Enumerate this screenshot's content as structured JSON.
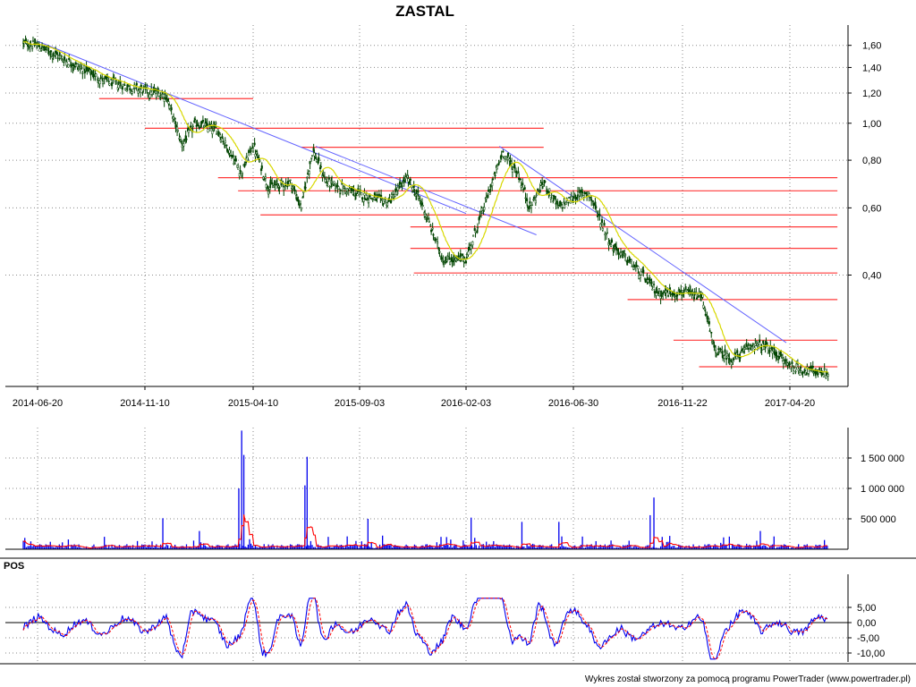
{
  "chart_data": [
    {
      "type": "candlestick",
      "title": "ZASTAL",
      "x_tick_labels": [
        "2014-06-20",
        "2014-11-10",
        "2015-04-10",
        "2015-09-03",
        "2016-02-03",
        "2016-06-30",
        "2016-11-22",
        "2017-04-20"
      ],
      "y_scale": "log",
      "y_tick_labels": [
        "1,60",
        "1,40",
        "1,20",
        "1,00",
        "0,80",
        "0,60",
        "0,40"
      ],
      "y_ticks": [
        1.6,
        1.4,
        1.2,
        1.0,
        0.8,
        0.6,
        0.4
      ],
      "ylim": [
        0.2,
        1.7
      ],
      "price_path": [
        [
          "2014-06-01",
          1.62
        ],
        [
          "2014-06-20",
          1.6
        ],
        [
          "2014-08-01",
          1.45
        ],
        [
          "2014-09-15",
          1.3
        ],
        [
          "2014-10-15",
          1.25
        ],
        [
          "2014-11-10",
          1.22
        ],
        [
          "2014-12-10",
          1.18
        ],
        [
          "2015-01-01",
          0.88
        ],
        [
          "2015-01-20",
          1.0
        ],
        [
          "2015-02-20",
          0.96
        ],
        [
          "2015-03-25",
          0.74
        ],
        [
          "2015-04-10",
          0.88
        ],
        [
          "2015-05-01",
          0.68
        ],
        [
          "2015-06-01",
          0.7
        ],
        [
          "2015-06-15",
          0.6
        ],
        [
          "2015-07-01",
          0.85
        ],
        [
          "2015-07-20",
          0.7
        ],
        [
          "2015-09-03",
          0.65
        ],
        [
          "2015-10-15",
          0.62
        ],
        [
          "2015-11-10",
          0.72
        ],
        [
          "2015-12-01",
          0.62
        ],
        [
          "2016-01-01",
          0.44
        ],
        [
          "2016-02-03",
          0.44
        ],
        [
          "2016-03-01",
          0.62
        ],
        [
          "2016-03-25",
          0.84
        ],
        [
          "2016-04-15",
          0.74
        ],
        [
          "2016-05-01",
          0.6
        ],
        [
          "2016-05-20",
          0.7
        ],
        [
          "2016-06-10",
          0.6
        ],
        [
          "2016-06-30",
          0.64
        ],
        [
          "2016-07-20",
          0.66
        ],
        [
          "2016-08-20",
          0.48
        ],
        [
          "2016-09-20",
          0.42
        ],
        [
          "2016-10-20",
          0.36
        ],
        [
          "2016-11-22",
          0.36
        ],
        [
          "2016-12-20",
          0.35
        ],
        [
          "2017-01-05",
          0.255
        ],
        [
          "2017-02-01",
          0.24
        ],
        [
          "2017-03-01",
          0.265
        ],
        [
          "2017-03-25",
          0.255
        ],
        [
          "2017-04-20",
          0.232
        ],
        [
          "2017-05-10",
          0.225
        ],
        [
          "2017-06-10",
          0.222
        ]
      ],
      "moving_average_color": "#d8d800",
      "trend_lines": [
        {
          "from": [
            "2014-06-20",
            1.64
          ],
          "to": [
            "2016-02-03",
            0.58
          ]
        },
        {
          "from": [
            "2015-07-05",
            0.87
          ],
          "to": [
            "2016-05-10",
            0.51
          ]
        },
        {
          "from": [
            "2016-03-20",
            0.87
          ],
          "to": [
            "2017-04-15",
            0.266
          ]
        }
      ],
      "support_resistance_levels": [
        {
          "price": 1.16,
          "from": "2014-09-10",
          "to": "2015-04-10"
        },
        {
          "price": 0.97,
          "from": "2014-11-10",
          "to": "2016-05-20"
        },
        {
          "price": 0.865,
          "from": "2015-06-15",
          "to": "2016-05-20"
        },
        {
          "price": 0.72,
          "from": "2015-02-20",
          "to": "2017-06-25"
        },
        {
          "price": 0.665,
          "from": "2015-03-20",
          "to": "2017-06-25"
        },
        {
          "price": 0.575,
          "from": "2015-04-20",
          "to": "2017-06-25"
        },
        {
          "price": 0.535,
          "from": "2015-11-15",
          "to": "2017-06-25"
        },
        {
          "price": 0.47,
          "from": "2015-11-15",
          "to": "2017-06-25"
        },
        {
          "price": 0.405,
          "from": "2015-11-20",
          "to": "2017-06-25"
        },
        {
          "price": 0.345,
          "from": "2016-09-10",
          "to": "2017-06-25"
        },
        {
          "price": 0.27,
          "from": "2016-11-10",
          "to": "2017-06-25"
        },
        {
          "price": 0.23,
          "from": "2016-12-15",
          "to": "2017-06-25"
        }
      ],
      "colors": {
        "candle": "#004400",
        "trend": "#6464ff",
        "level": "#ff3a3a",
        "ma": "#d8d800"
      }
    },
    {
      "type": "bar",
      "y_tick_labels": [
        "1 500 000",
        "1 000 000",
        "500 000"
      ],
      "y_ticks": [
        1500000,
        1000000,
        500000
      ],
      "ylim": [
        0,
        2000000
      ],
      "spikes": [
        [
          "2014-12-05",
          510000
        ],
        [
          "2015-01-25",
          300000
        ],
        [
          "2015-03-21",
          1000000
        ],
        [
          "2015-03-25",
          1950000
        ],
        [
          "2015-03-28",
          1550000
        ],
        [
          "2015-06-20",
          1050000
        ],
        [
          "2015-06-23",
          1520000
        ],
        [
          "2015-09-15",
          500000
        ],
        [
          "2016-02-10",
          520000
        ],
        [
          "2016-04-20",
          450000
        ],
        [
          "2016-06-10",
          450000
        ],
        [
          "2016-10-10",
          560000
        ],
        [
          "2016-10-15",
          850000
        ],
        [
          "2017-03-10",
          300000
        ]
      ],
      "colors": {
        "bars": "#0000ee",
        "average": "#ff0000"
      }
    },
    {
      "type": "line",
      "panel_label": "POS",
      "y_tick_labels": [
        "5,00",
        "0,00",
        "-5,00",
        "-10,00"
      ],
      "y_ticks": [
        5,
        0,
        -5,
        -10
      ],
      "ylim": [
        -13,
        9
      ],
      "colors": {
        "oscillator": "#0000ee",
        "signal": "#ff0000",
        "zero": "#000000"
      }
    }
  ],
  "footer": "Wykres został stworzony za pomocą programu PowerTrader (www.powertrader.pl)"
}
